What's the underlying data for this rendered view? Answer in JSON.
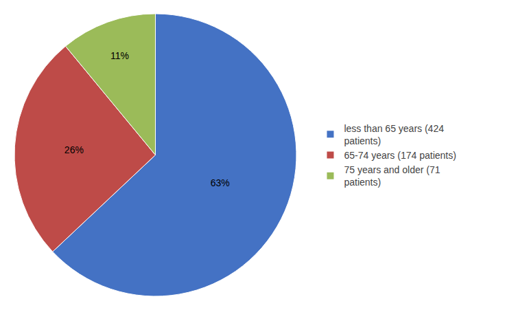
{
  "chart_data": {
    "type": "pie",
    "categories": [
      "less than 65 years (424\npatients)",
      "65-74 years (174 patients)",
      "75 years and older (71\npatients)"
    ],
    "values": [
      63,
      26,
      11
    ],
    "value_labels": [
      "63%",
      "26%",
      "11%"
    ],
    "data_labels": true,
    "colors": [
      "#4472C4",
      "#BE4B48",
      "#9BBB59"
    ],
    "legend": "right"
  }
}
